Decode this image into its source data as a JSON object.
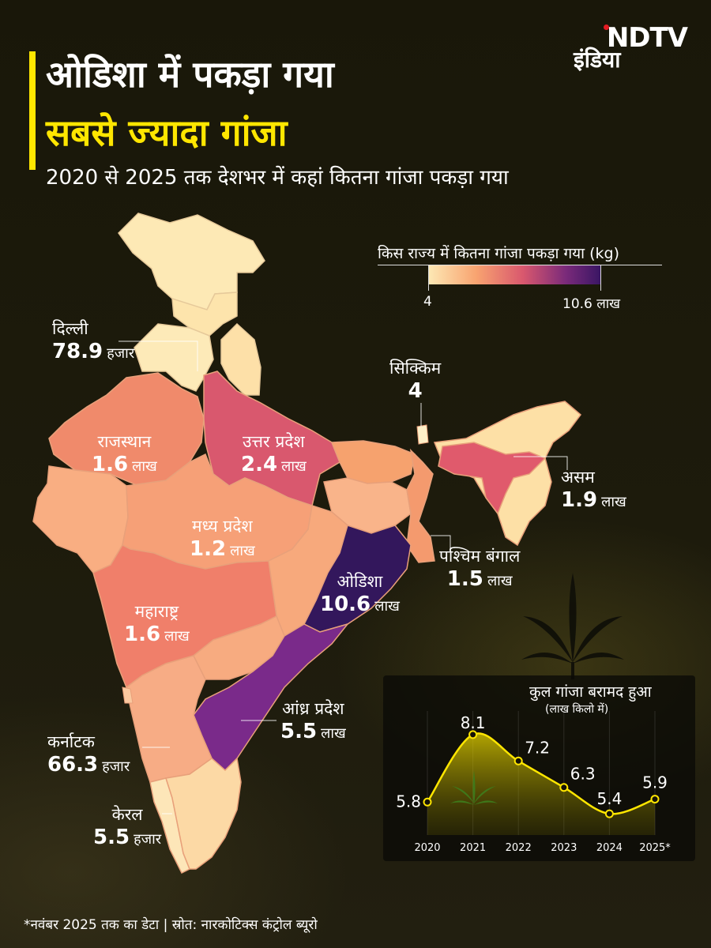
{
  "brand": {
    "logo_line1": "NDTV",
    "logo_line2": "इंडिया",
    "accent_red": "#e21b22"
  },
  "header": {
    "title_line1": "ओडिशा में पकड़ा गया",
    "title_line2": "सबसे ज्यादा गांजा",
    "subtitle": "2020 से 2025 तक देशभर में कहां कितना गांजा पकड़ा गया",
    "accent_color": "#ffe600"
  },
  "legend": {
    "title": "किस राज्य में कितना गांजा पकड़ा गया (kg)",
    "min_label": "4",
    "max_label": "10.6 लाख",
    "colors": [
      "#fde9b5",
      "#f8a370",
      "#d9586e",
      "#7a2a7a",
      "#3a1664"
    ]
  },
  "states": [
    {
      "name": "दिल्ली",
      "value": "78.9",
      "unit": "हजार"
    },
    {
      "name": "राजस्थान",
      "value": "1.6",
      "unit": "लाख"
    },
    {
      "name": "उत्तर प्रदेश",
      "value": "2.4",
      "unit": "लाख"
    },
    {
      "name": "सिक्किम",
      "value": "4",
      "unit": ""
    },
    {
      "name": "असम",
      "value": "1.9",
      "unit": "लाख"
    },
    {
      "name": "मध्य प्रदेश",
      "value": "1.2",
      "unit": "लाख"
    },
    {
      "name": "पश्चिम बंगाल",
      "value": "1.5",
      "unit": "लाख"
    },
    {
      "name": "ओडिशा",
      "value": "10.6",
      "unit": "लाख"
    },
    {
      "name": "महाराष्ट्र",
      "value": "1.6",
      "unit": "लाख"
    },
    {
      "name": "आंध्र प्रदेश",
      "value": "5.5",
      "unit": "लाख"
    },
    {
      "name": "कर्नाटक",
      "value": "66.3",
      "unit": "हजार"
    },
    {
      "name": "केरल",
      "value": "5.5",
      "unit": "हजार"
    }
  ],
  "chart_data": {
    "type": "line",
    "title": "कुल गांजा बरामद हुआ",
    "subtitle": "(लाख किलो में)",
    "categories": [
      "2020",
      "2021",
      "2022",
      "2023",
      "2024",
      "2025*"
    ],
    "values": [
      5.8,
      8.1,
      7.2,
      6.3,
      5.4,
      5.9
    ],
    "value_labels": [
      "5.8",
      "8.1",
      "7.2",
      "6.3",
      "5.4",
      "5.9"
    ],
    "line_color": "#ffe600",
    "ylim": [
      5,
      8.5
    ]
  },
  "footnote": "*नवंबर 2025 तक का डेटा | स्रोत: नारकोटिक्स कंट्रोल ब्यूरो"
}
